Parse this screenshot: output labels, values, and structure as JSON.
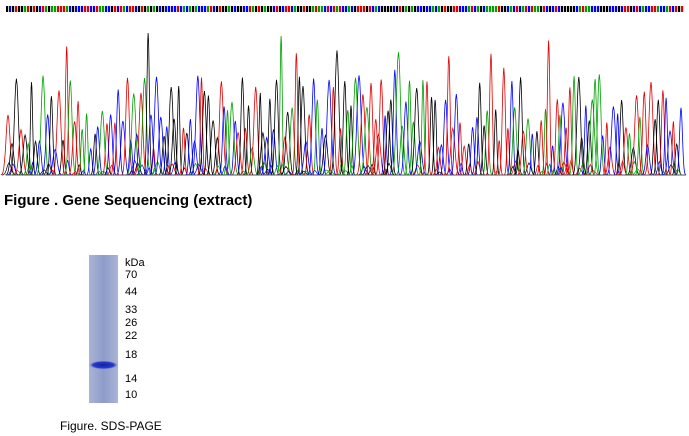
{
  "sequencing_caption": "Figure . Gene Sequencing (extract)",
  "gel": {
    "unit": "kDa",
    "markers": [
      70,
      44,
      33,
      26,
      22,
      18,
      14,
      10
    ]
  },
  "gel_caption": "Figure. SDS-PAGE"
}
